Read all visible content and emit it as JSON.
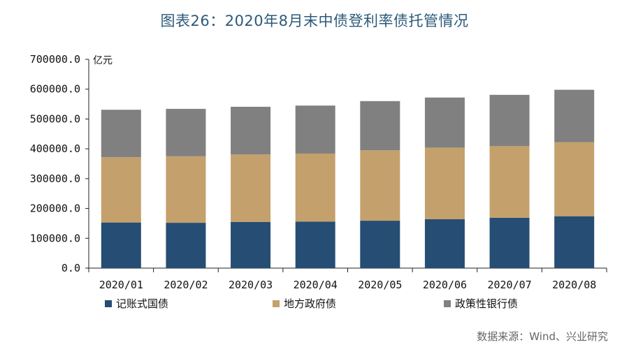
{
  "title": "图表26：2020年8月末中债登利率债托管情况",
  "source": "数据来源：Wind、兴业研究",
  "chart_data": {
    "type": "bar",
    "stacked": true,
    "title": "图表26：2020年8月末中债登利率债托管情况",
    "ylabel": "亿元",
    "xlabel": "",
    "ylim": [
      0,
      700000
    ],
    "yticks": [
      "700000.0",
      "600000.0",
      "500000.0",
      "400000.0",
      "300000.0",
      "200000.0",
      "100000.0",
      "0.0"
    ],
    "ytick_values": [
      700000,
      600000,
      500000,
      400000,
      300000,
      200000,
      100000,
      0
    ],
    "categories": [
      "2020/01",
      "2020/02",
      "2020/03",
      "2020/04",
      "2020/05",
      "2020/06",
      "2020/07",
      "2020/08"
    ],
    "series": [
      {
        "name": "记账式国债",
        "color": "#264d73",
        "values": [
          153000,
          152000,
          155000,
          156000,
          159000,
          164000,
          169000,
          174000
        ]
      },
      {
        "name": "地方政府债",
        "color": "#c4a06c",
        "values": [
          219000,
          223000,
          226000,
          228000,
          236000,
          240000,
          240000,
          248000
        ]
      },
      {
        "name": "政策性银行债",
        "color": "#808080",
        "values": [
          159000,
          159000,
          160000,
          161000,
          165000,
          168000,
          172000,
          176000
        ]
      }
    ],
    "legend_position": "bottom",
    "grid": false
  }
}
